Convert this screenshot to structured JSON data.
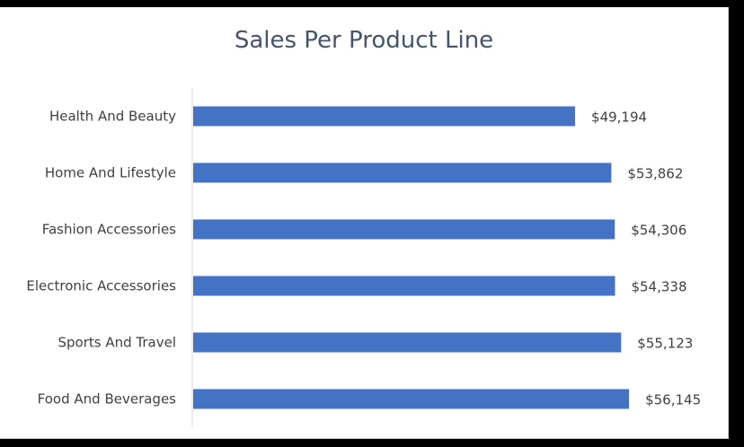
{
  "chart_data": {
    "type": "bar",
    "orientation": "horizontal",
    "title": "Sales Per Product Line",
    "xlabel": "",
    "ylabel": "",
    "categories": [
      "Health And Beauty",
      "Home And Lifestyle",
      "Fashion Accessories",
      "Electronic Accessories",
      "Sports And Travel",
      "Food And Beverages"
    ],
    "values": [
      49194,
      53862,
      54306,
      54338,
      55123,
      56145
    ],
    "value_labels": [
      "$49,194",
      "$53,862",
      "$54,306",
      "$54,338",
      "$55,123",
      "$56,145"
    ],
    "xlim": [
      0,
      60000
    ],
    "grid": false,
    "legend": "none",
    "bar_color": "#4472c4"
  }
}
